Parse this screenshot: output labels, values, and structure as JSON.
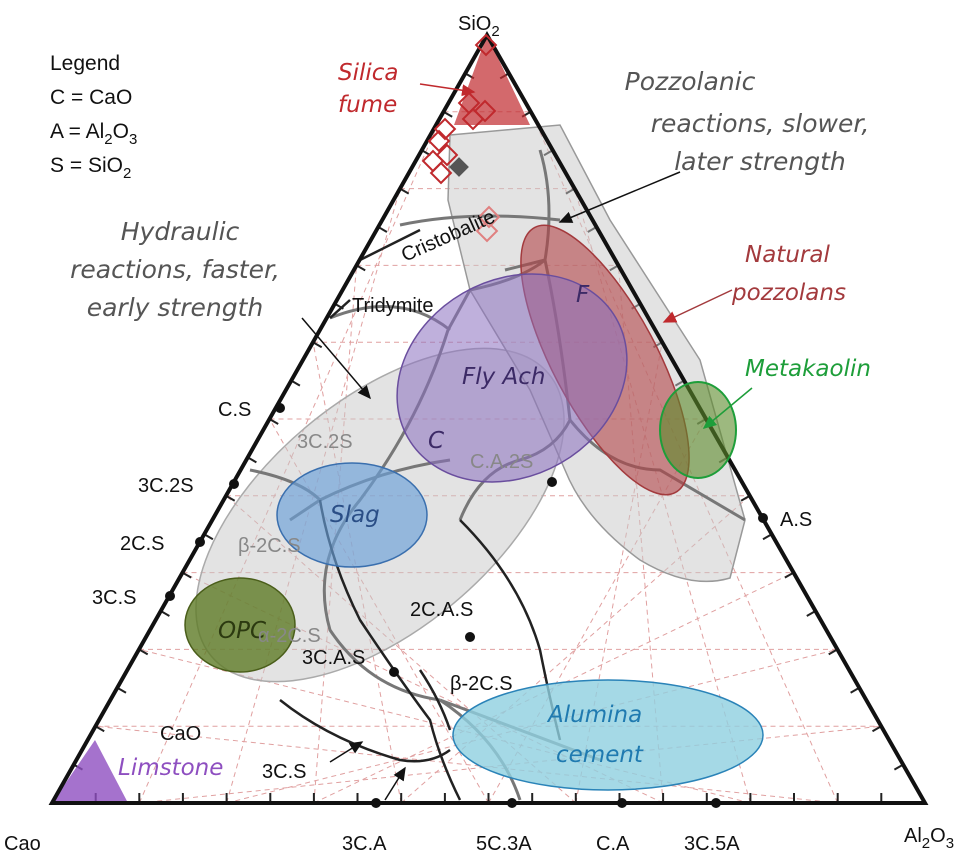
{
  "vertices": {
    "top": {
      "text": "SiO",
      "sub": "2"
    },
    "left": "Cao",
    "right": {
      "text": "Al",
      "sub": "2",
      "tail": "O",
      "sub2": "3"
    }
  },
  "legend": {
    "title": "Legend",
    "c": "C = CaO",
    "a": {
      "text": "A = Al",
      "sub": "2",
      "tail": "O",
      "sub2": "3"
    },
    "s": {
      "text": "S = SiO",
      "sub": "2"
    }
  },
  "annotations": {
    "pozzolanic": [
      "Pozzolanic",
      "reactions, slower,",
      "later strength"
    ],
    "hydraulic": [
      "Hydraulic",
      "reactions, faster,",
      "early strength"
    ]
  },
  "regions": {
    "silica_fume": [
      "Silica",
      "fume"
    ],
    "natural_pozzolans": [
      "Natural",
      "pozzolans"
    ],
    "metakaolin": "Metakaolin",
    "fly_ash_f": "F",
    "fly_ash": "Fly Ach",
    "fly_ash_c": "C",
    "slag": "Slag",
    "opc": "OPC",
    "alumina_cement": [
      "Alumina",
      "cement"
    ],
    "limestone": "Limstone"
  },
  "phases": {
    "cristobalite": "Cristobalite",
    "tridymite": "Tridymite",
    "c3s2_gray": "3C.2S",
    "cas2": "C.A.2S",
    "b2cs_gray": "β-2C.S",
    "a2cs": "α-2C.S",
    "c2as": "2C.A.S",
    "c3as": "3C.A.S",
    "b2cs": "β-2C.S",
    "cao": "CaO",
    "c3s_inner": "3C.S"
  },
  "left_edge": [
    "C.S",
    "3C.2S",
    "2C.S",
    "3C.S"
  ],
  "right_edge": [
    "A.S"
  ],
  "bottom_edge": [
    "3C.A",
    "5C.3A",
    "C.A",
    "3C.5A"
  ],
  "colors": {
    "silica_fume": "#c0292d",
    "natural_pozzolans": "#a33a3d",
    "metakaolin": "#1e9e3a",
    "fly_ash": "#6a4e9e",
    "slag": "#3a6fae",
    "opc": "#5e7a25",
    "alumina": "#2a83b8",
    "limestone": "#8e4fc0",
    "gray_region": "#c8c8c8",
    "grid": "#e0a0a0"
  }
}
